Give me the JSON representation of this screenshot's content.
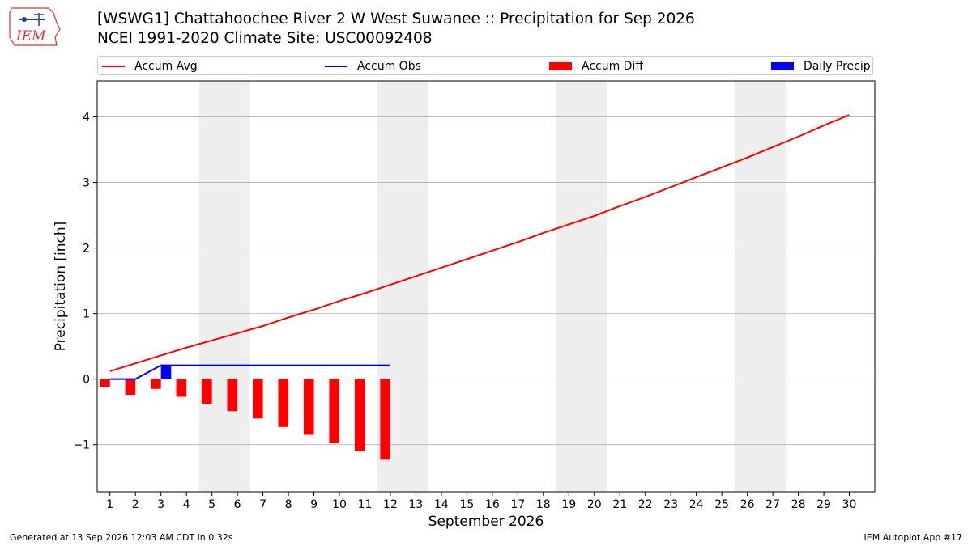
{
  "logo": {
    "text": "IEM",
    "color": "#d33"
  },
  "title": {
    "line1": "[WSWG1] Chattahoochee River 2 W West Suwanee :: Precipitation for Sep 2026",
    "line2": "NCEI 1991-2020 Climate Site: USC00092408"
  },
  "legend": [
    {
      "label": "Accum Avg",
      "kind": "line",
      "color": "#ff0000"
    },
    {
      "label": "Accum Obs",
      "kind": "line",
      "color": "#0000ff"
    },
    {
      "label": "Accum Diff",
      "kind": "box",
      "color": "#ff0000"
    },
    {
      "label": "Daily Precip",
      "kind": "box",
      "color": "#0000ff"
    }
  ],
  "footer": {
    "left": "Generated at 13 Sep 2026 12:03 AM CDT in 0.32s",
    "right": "IEM Autoplot App #17"
  },
  "chart_data": {
    "type": "bar",
    "xlabel": "September 2026",
    "ylabel": "Precipitation [inch]",
    "xlim": [
      0.5,
      31
    ],
    "ylim": [
      -1.72,
      4.55
    ],
    "x_ticks": [
      1,
      2,
      3,
      4,
      5,
      6,
      7,
      8,
      9,
      10,
      11,
      12,
      13,
      14,
      15,
      16,
      17,
      18,
      19,
      20,
      21,
      22,
      23,
      24,
      25,
      26,
      27,
      28,
      29,
      30
    ],
    "y_ticks": [
      -1,
      0,
      1,
      2,
      3,
      4
    ],
    "y_tick_labels": [
      "−1",
      "0",
      "1",
      "2",
      "3",
      "4"
    ],
    "grid": "horizontal",
    "weekend_shading_days": [
      [
        5,
        6
      ],
      [
        12,
        13
      ],
      [
        19,
        20
      ],
      [
        26,
        27
      ]
    ],
    "series": [
      {
        "name": "Accum Avg",
        "kind": "line",
        "color": "#ff0000",
        "x": [
          1,
          2,
          3,
          4,
          5,
          6,
          7,
          8,
          9,
          10,
          11,
          12,
          13,
          14,
          15,
          16,
          17,
          18,
          19,
          20,
          21,
          22,
          23,
          24,
          25,
          26,
          27,
          28,
          29,
          30
        ],
        "values": [
          0.12,
          0.24,
          0.36,
          0.48,
          0.59,
          0.7,
          0.81,
          0.94,
          1.06,
          1.19,
          1.31,
          1.44,
          1.57,
          1.7,
          1.83,
          1.96,
          2.09,
          2.23,
          2.36,
          2.49,
          2.64,
          2.78,
          2.93,
          3.08,
          3.23,
          3.38,
          3.54,
          3.7,
          3.87,
          4.03
        ]
      },
      {
        "name": "Accum Obs",
        "kind": "line",
        "color": "#0000ff",
        "x": [
          1,
          2,
          3,
          4,
          5,
          6,
          7,
          8,
          9,
          10,
          11,
          12
        ],
        "values": [
          0,
          0,
          0.21,
          0.21,
          0.21,
          0.21,
          0.21,
          0.21,
          0.21,
          0.21,
          0.21,
          0.21
        ]
      },
      {
        "name": "Accum Diff",
        "kind": "bar",
        "color": "#ff0000",
        "offset": -0.2,
        "x": [
          1,
          2,
          3,
          4,
          5,
          6,
          7,
          8,
          9,
          10,
          11,
          12
        ],
        "values": [
          -0.12,
          -0.24,
          -0.15,
          -0.27,
          -0.38,
          -0.49,
          -0.6,
          -0.73,
          -0.85,
          -0.98,
          -1.1,
          -1.23
        ]
      },
      {
        "name": "Daily Precip",
        "kind": "bar",
        "color": "#0000ff",
        "offset": 0.2,
        "x": [
          1,
          2,
          3,
          4,
          5,
          6,
          7,
          8,
          9,
          10,
          11,
          12
        ],
        "values": [
          0,
          0,
          0.21,
          0,
          0,
          0,
          0,
          0,
          0,
          0,
          0,
          0
        ]
      }
    ]
  }
}
